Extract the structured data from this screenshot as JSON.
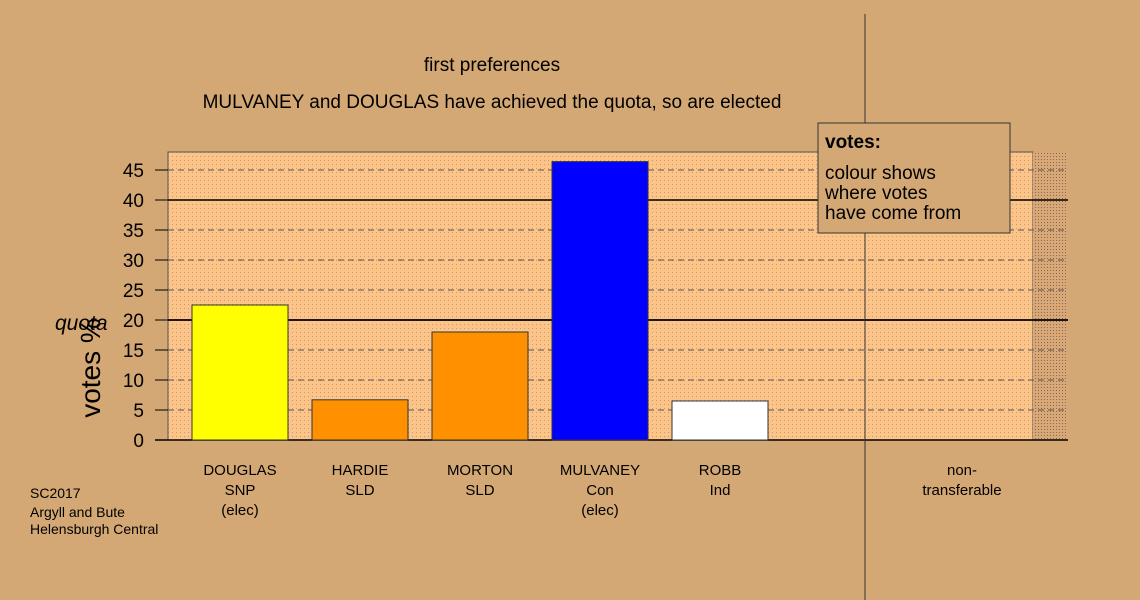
{
  "chart_data": {
    "type": "bar",
    "title": "first preferences",
    "subtitle": "MULVANEY and DOUGLAS have achieved the quota, so are elected",
    "ylabel": "votes %",
    "xlabel": "",
    "ylim": [
      0,
      48
    ],
    "yticks": [
      0,
      5,
      10,
      15,
      20,
      25,
      30,
      35,
      40,
      45
    ],
    "quota": 20,
    "quota_label": "quota",
    "categories": [
      {
        "lines": [
          "DOUGLAS",
          "SNP",
          "(elec)"
        ],
        "value": 22.5,
        "color": "#ffff00"
      },
      {
        "lines": [
          "HARDIE",
          "SLD"
        ],
        "value": 6.7,
        "color": "#ff9100"
      },
      {
        "lines": [
          "MORTON",
          "SLD"
        ],
        "value": 18.0,
        "color": "#ff9100"
      },
      {
        "lines": [
          "MULVANEY",
          "Con",
          "(elec)"
        ],
        "value": 46.4,
        "color": "#0000ff"
      },
      {
        "lines": [
          "ROBB",
          "Ind"
        ],
        "value": 6.5,
        "color": "#ffffff"
      }
    ],
    "nontransferable": {
      "lines": [
        "non-",
        "transferable"
      ],
      "value": 0
    },
    "legend": {
      "title": "votes:",
      "lines": [
        "colour shows",
        "where votes",
        "have come from"
      ],
      "position": "top-right"
    },
    "grid": true
  },
  "footer": [
    "SC2017",
    "Argyll and Bute",
    "Helensburgh Central"
  ]
}
